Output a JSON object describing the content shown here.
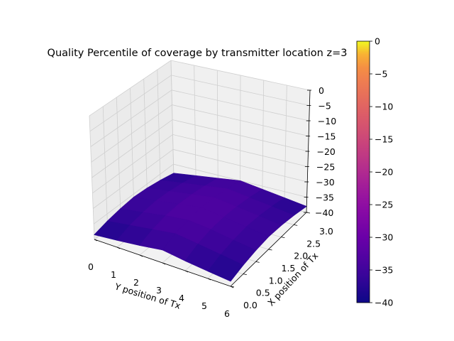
{
  "chart_data": {
    "type": "surface",
    "title": "Quality Percentile of coverage by transmitter location z=3",
    "xlabel": "Y position of Tx",
    "ylabel": "X position of Tx",
    "zlabel": "",
    "colormap": "plasma",
    "colorbar": {
      "min": -40,
      "max": 0,
      "ticks": [
        "0",
        "−5",
        "−10",
        "−15",
        "−20",
        "−25",
        "−30",
        "−35",
        "−40"
      ],
      "tick_values": [
        0,
        -5,
        -10,
        -15,
        -20,
        -25,
        -30,
        -35,
        -40
      ]
    },
    "x_ticks": [
      "0",
      "1",
      "2",
      "3",
      "4",
      "5",
      "6"
    ],
    "x_tick_values": [
      0,
      1,
      2,
      3,
      4,
      5,
      6
    ],
    "y_ticks": [
      "0.0",
      "0.5",
      "1.0",
      "1.5",
      "2.0",
      "2.5",
      "3.0"
    ],
    "y_tick_values": [
      0.0,
      0.5,
      1.0,
      1.5,
      2.0,
      2.5,
      3.0
    ],
    "z_ticks": [
      "0",
      "−5",
      "−10",
      "−15",
      "−20",
      "−25",
      "−30",
      "−35",
      "−40"
    ],
    "z_tick_values": [
      0,
      -5,
      -10,
      -15,
      -20,
      -25,
      -30,
      -35,
      -40
    ],
    "xlim": [
      0,
      6
    ],
    "ylim": [
      0,
      3
    ],
    "zlim": [
      -40,
      0
    ],
    "grid": true,
    "x": [
      0,
      1,
      2,
      3,
      4,
      5,
      6
    ],
    "y": [
      0,
      0.5,
      1.0,
      1.5,
      2.0,
      2.5,
      3.0
    ],
    "z": [
      [
        -38.5,
        -37.8,
        -37.0,
        -36.0,
        -37.0,
        -37.8,
        -38.5
      ],
      [
        -37.3,
        -36.3,
        -35.3,
        -34.3,
        -35.3,
        -36.3,
        -37.3
      ],
      [
        -36.5,
        -35.5,
        -34.3,
        -33.5,
        -34.3,
        -35.5,
        -36.5
      ],
      [
        -36.0,
        -35.0,
        -34.0,
        -33.0,
        -34.0,
        -35.0,
        -36.0
      ],
      [
        -36.3,
        -35.3,
        -34.3,
        -33.3,
        -34.3,
        -35.3,
        -36.3
      ],
      [
        -37.0,
        -36.0,
        -35.0,
        -34.0,
        -35.0,
        -36.0,
        -37.0
      ],
      [
        -38.0,
        -37.0,
        -36.0,
        -35.0,
        -36.0,
        -37.0,
        -38.0
      ]
    ]
  }
}
